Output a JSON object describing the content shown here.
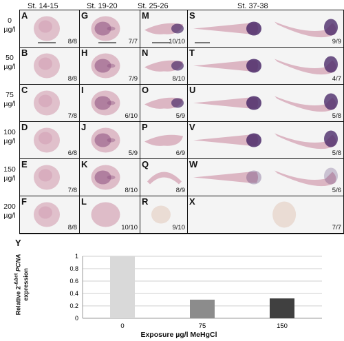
{
  "stages": [
    "St. 14-15",
    "St. 19-20",
    "St. 25-26",
    "St. 37-38"
  ],
  "concentrations": [
    [
      "0",
      "µg/l"
    ],
    [
      "50",
      "µg/l"
    ],
    [
      "75",
      "µg/l"
    ],
    [
      "100",
      "µg/l"
    ],
    [
      "150",
      "µg/l"
    ],
    [
      "200",
      "µg/l"
    ]
  ],
  "panels": [
    [
      "A",
      "8/8"
    ],
    [
      "G",
      "7/7"
    ],
    [
      "M",
      "10/10"
    ],
    [
      "S",
      "9/9"
    ],
    [
      "B",
      "8/8"
    ],
    [
      "H",
      "7/9"
    ],
    [
      "N",
      "8/10"
    ],
    [
      "T",
      "4/7"
    ],
    [
      "C",
      "7/8"
    ],
    [
      "I",
      "6/10"
    ],
    [
      "O",
      "5/9"
    ],
    [
      "U",
      "5/8"
    ],
    [
      "D",
      "6/8"
    ],
    [
      "J",
      "5/9"
    ],
    [
      "P",
      "6/9"
    ],
    [
      "V",
      "5/8"
    ],
    [
      "E",
      "7/8"
    ],
    [
      "K",
      "8/10"
    ],
    [
      "Q",
      "8/9"
    ],
    [
      "W",
      "5/6"
    ],
    [
      "F",
      "8/8"
    ],
    [
      "L",
      "10/10"
    ],
    [
      "R",
      "9/10"
    ],
    [
      "X",
      "7/7"
    ]
  ],
  "chart_data": {
    "type": "bar",
    "panel_label": "Y",
    "categories": [
      "0",
      "75",
      "150"
    ],
    "values": [
      1.0,
      0.3,
      0.32
    ],
    "bar_colors": [
      "#d9d9d9",
      "#8c8c8c",
      "#404040"
    ],
    "ylim": [
      0,
      1
    ],
    "yticks": [
      "0",
      "0.2",
      "0.4",
      "0.6",
      "0.8",
      "1"
    ],
    "ylabel": [
      "Relative 2",
      "-ΔΔct",
      " ",
      "PCNA",
      "expression"
    ],
    "xlabel": "Exposure µg/l MeHgCl"
  },
  "colors": {
    "grid_border": "#111111",
    "cell_bg": "#f4f4f4",
    "embryo_pink": "#dcb6c3",
    "stain_purple": "#4c2c6a"
  }
}
